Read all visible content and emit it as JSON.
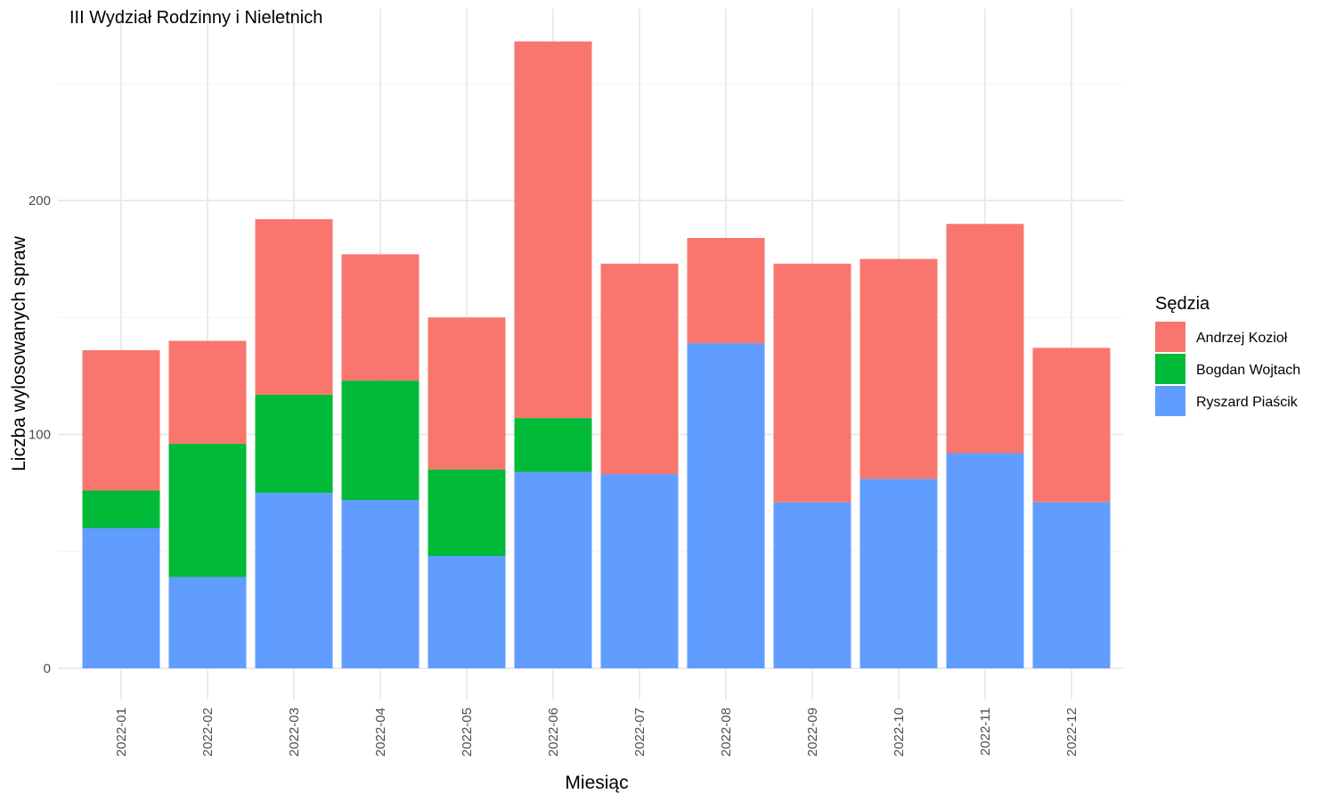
{
  "chart_data": {
    "type": "bar",
    "stacked": true,
    "title": "III Wydział Rodzinny i Nieletnich",
    "xlabel": "Miesiąc",
    "ylabel": "Liczba wylosowanych spraw",
    "ylim": [
      0,
      280
    ],
    "yticks": [
      0,
      100,
      200
    ],
    "grid": true,
    "legend": {
      "title": "Sędzia",
      "position": "right"
    },
    "categories": [
      "2022-01",
      "2022-02",
      "2022-03",
      "2022-04",
      "2022-05",
      "2022-06",
      "2022-07",
      "2022-08",
      "2022-09",
      "2022-10",
      "2022-11",
      "2022-12"
    ],
    "series": [
      {
        "name": "Ryszard Piaścik",
        "color": "#619CFF",
        "values": [
          60,
          39,
          75,
          72,
          48,
          84,
          83,
          139,
          71,
          81,
          92,
          71
        ]
      },
      {
        "name": "Bogdan Wojtach",
        "color": "#00BA38",
        "values": [
          16,
          57,
          42,
          51,
          37,
          23,
          0,
          0,
          0,
          0,
          0,
          0
        ]
      },
      {
        "name": "Andrzej Kozioł",
        "color": "#F8766D",
        "values": [
          60,
          44,
          75,
          54,
          65,
          161,
          90,
          45,
          102,
          94,
          98,
          66
        ]
      }
    ],
    "legend_order": [
      "Andrzej Kozioł",
      "Bogdan Wojtach",
      "Ryszard Piaścik"
    ]
  }
}
